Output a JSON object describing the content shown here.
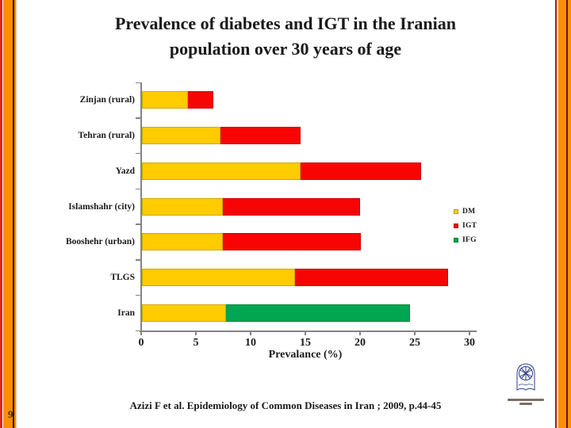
{
  "title": {
    "line1": "Prevalence of diabetes and IGT in the Iranian",
    "line2": "population over 30 years of age"
  },
  "chart_data": {
    "type": "bar",
    "orientation": "horizontal",
    "stacked": true,
    "categories": [
      "Zinjan (rural)",
      "Tehran (rural)",
      "Yazd",
      "Islamshahr (city)",
      "Booshehr (urban)",
      "TLGS",
      "Iran"
    ],
    "series": [
      {
        "name": "DM",
        "color": "#FFCC00",
        "values": [
          4.2,
          7.2,
          14.5,
          7.4,
          7.4,
          14.0,
          7.7
        ]
      },
      {
        "name": "IGT",
        "color": "#F70505",
        "values": [
          2.3,
          7.3,
          11.0,
          12.5,
          12.6,
          14.0,
          0
        ]
      },
      {
        "name": "IFG",
        "color": "#00A651",
        "values": [
          0,
          0,
          0,
          0,
          0,
          0,
          16.8
        ]
      }
    ],
    "xlabel": "Prevalance (%)",
    "xlim": [
      0,
      30
    ],
    "xticks": [
      0,
      5,
      10,
      15,
      20,
      25,
      30
    ],
    "grid": false,
    "legend_position": "right-middle",
    "legend": [
      "DM",
      "IGT",
      "IFG"
    ]
  },
  "citation": "Azizi F et al. Epidemiology of Common Diseases in Iran ; 2009, p.44-45",
  "page_number": "9",
  "colors": {
    "dm": "#FFCC00",
    "igt": "#F70505",
    "ifg": "#00A651",
    "axis": "#848484",
    "border_orange": "#FF8E01",
    "border_red": "#E3221A",
    "logo_blue": "#2B3E8F"
  }
}
